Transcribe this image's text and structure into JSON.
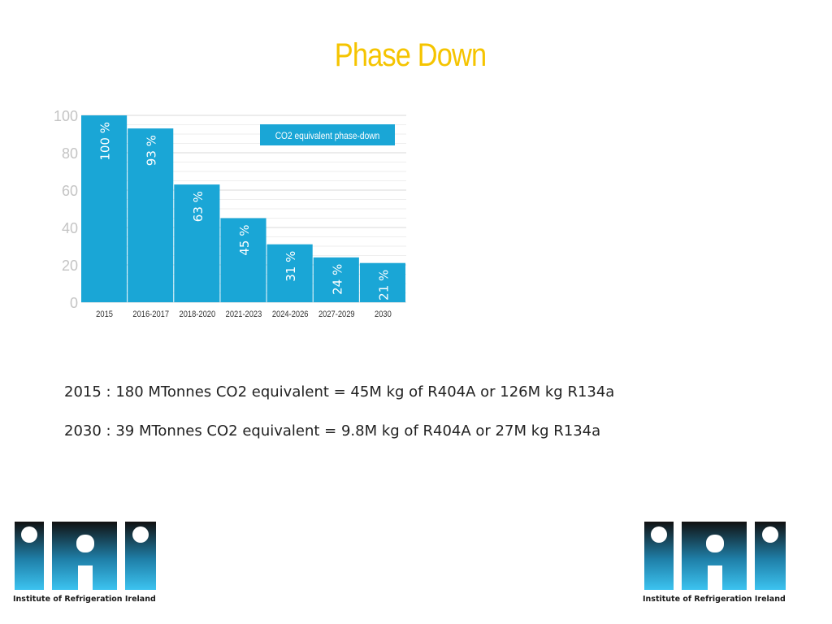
{
  "slide": {
    "title": "Phase Down",
    "line1": "2015 : 180 MTonnes CO2 equivalent = 45M kg of R404A or 126M kg R134a",
    "line2": "2030 : 39 MTonnes CO2 equivalent = 9.8M kg of R404A or 27M kg R134a"
  },
  "logo": {
    "text": "IRI",
    "caption": "Institute of Refrigeration Ireland"
  },
  "colors": {
    "title": "#f5c400",
    "bar": "#1aa6d6",
    "legend_box": "#1aa6d6"
  },
  "chart_data": {
    "type": "bar",
    "categories": [
      "2015",
      "2016-2017",
      "2018-2020",
      "2021-2023",
      "2024-2026",
      "2027-2029",
      "2030"
    ],
    "values": [
      100,
      93,
      63,
      45,
      31,
      24,
      21
    ],
    "data_labels": [
      "100 %",
      "93 %",
      "63 %",
      "45 %",
      "31 %",
      "24 %",
      "21 %"
    ],
    "legend": "CO2 equivalent phase-down",
    "yticks": [
      0,
      20,
      40,
      60,
      80,
      100
    ],
    "ylim": [
      0,
      100
    ],
    "grid": true,
    "legend_position": "top-right"
  }
}
